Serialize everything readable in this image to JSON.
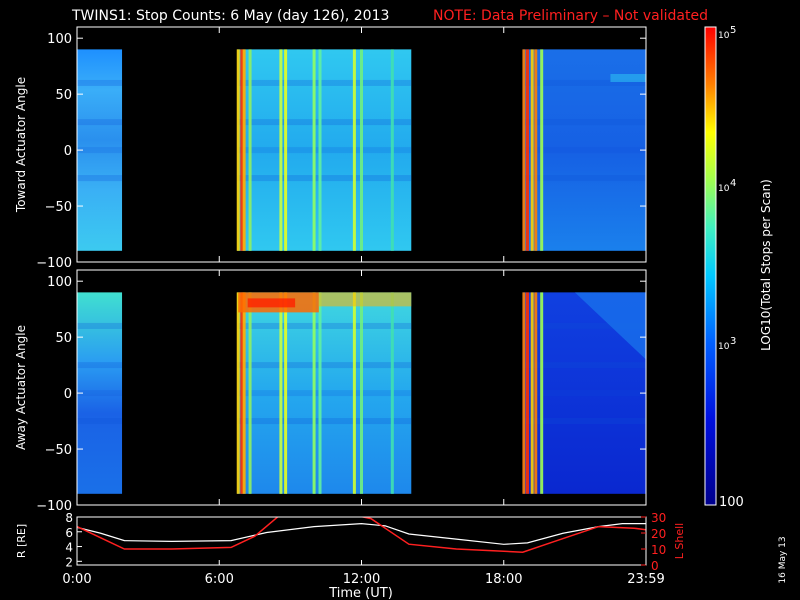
{
  "header": {
    "title": "TWINS1: Stop Counts:  6 May (day 126), 2013",
    "note": "NOTE: Data Preliminary – Not validated",
    "title_color": "#ffffff",
    "note_color": "#ff2020"
  },
  "date_stamp": "16 May 13",
  "chart_data": [
    {
      "type": "heatmap",
      "panel": "toward",
      "ylabel": "Toward Actuator Angle",
      "ylim": [
        -100,
        110
      ],
      "yticks": [
        100,
        50,
        0,
        -50,
        -100
      ],
      "xlim_hours": [
        0,
        24
      ],
      "angle_range": [
        -90,
        90
      ],
      "data_intervals_hours": [
        [
          0.0,
          1.9
        ],
        [
          6.75,
          14.1
        ],
        [
          18.8,
          24.0
        ]
      ],
      "stripe_hours": [
        6.8,
        6.95,
        7.05,
        7.3,
        8.6,
        8.8,
        10.0,
        10.25,
        11.7,
        12.0,
        13.3,
        18.85,
        19.0,
        19.2,
        19.35,
        19.6
      ]
    },
    {
      "type": "heatmap",
      "panel": "away",
      "ylabel": "Away Actuator Angle",
      "ylim": [
        -100,
        110
      ],
      "yticks": [
        100,
        50,
        0,
        -50,
        -100
      ],
      "xlim_hours": [
        0,
        24
      ],
      "angle_range": [
        -90,
        90
      ],
      "data_intervals_hours": [
        [
          0.0,
          1.9
        ],
        [
          6.75,
          14.1
        ],
        [
          18.8,
          24.0
        ]
      ],
      "stripe_hours": [
        6.8,
        6.95,
        7.05,
        7.3,
        8.6,
        8.8,
        10.0,
        10.25,
        11.7,
        12.0,
        13.3,
        18.85,
        19.0,
        19.2,
        19.35,
        19.6
      ]
    },
    {
      "type": "line",
      "panel": "orbit",
      "ylabel_left": "R [RE]",
      "ylabel_right": "L Shell",
      "ylim_left": [
        1.5,
        8
      ],
      "yticks_left": [
        2,
        4,
        6,
        8
      ],
      "ylim_right": [
        0,
        30
      ],
      "yticks_right": [
        0,
        10,
        20,
        30
      ],
      "xlabel": "Time (UT)",
      "xticks": [
        "0:00",
        "6:00",
        "12:00",
        "18:00",
        "23:59"
      ],
      "series": [
        {
          "color": "#ffffff",
          "x_hours": [
            0,
            1,
            2,
            4,
            6.5,
            8,
            10,
            12,
            13,
            14,
            16,
            18,
            19,
            20.5,
            22,
            23,
            24
          ],
          "r_re": [
            6.6,
            5.8,
            4.8,
            4.7,
            4.8,
            5.9,
            6.7,
            7.1,
            6.8,
            5.7,
            5.0,
            4.3,
            4.5,
            5.8,
            6.7,
            7.1,
            7.1
          ]
        },
        {
          "color": "#ff2020",
          "x_hours": [
            0,
            1,
            2,
            4,
            6.5,
            7.5,
            8.7,
            11.1,
            12.4,
            14,
            16,
            18.8,
            20,
            22,
            23.5,
            24
          ],
          "l_shell": [
            24,
            17,
            10,
            10,
            11,
            18,
            33,
            33,
            29,
            13,
            10,
            8,
            14,
            24,
            23,
            22
          ]
        }
      ]
    },
    {
      "type": "colorbar",
      "label": "LOG10(Total Stops per Scan)",
      "tick_labels": [
        "10",
        "5",
        "10",
        "4",
        "10",
        "3",
        "100"
      ],
      "min": 100,
      "max": 100000
    }
  ]
}
